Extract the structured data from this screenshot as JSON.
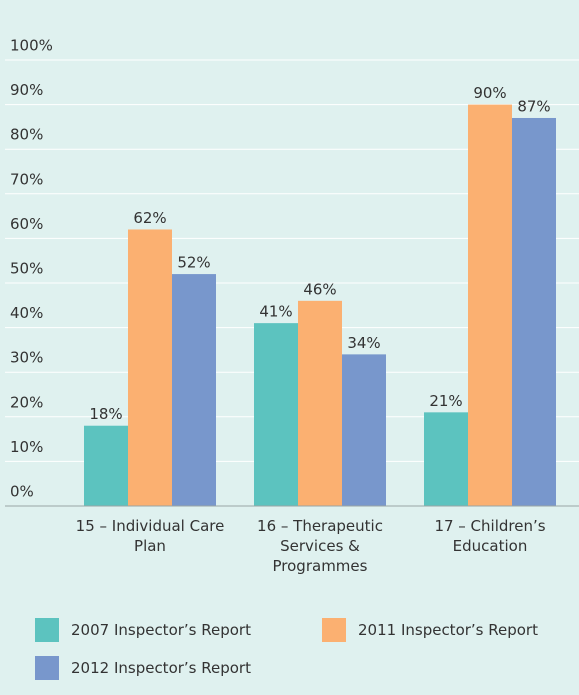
{
  "chart_data": {
    "type": "bar",
    "categories": [
      "15 – Individual Care Plan",
      "16 – Therapeutic Services & Programmes",
      "17 – Children’s Education"
    ],
    "series": [
      {
        "name": "2007 Inspector’s Report",
        "color": "#5cc3bf",
        "values": [
          18,
          41,
          21
        ],
        "value_labels": [
          "18%",
          "41%",
          "21%"
        ]
      },
      {
        "name": "2011 Inspector’s Report",
        "color": "#fbb071",
        "values": [
          62,
          46,
          90
        ],
        "value_labels": [
          "62%",
          "46%",
          "90%"
        ]
      },
      {
        "name": "2012 Inspector’s Report",
        "color": "#7897cc",
        "values": [
          52,
          34,
          87
        ],
        "value_labels": [
          "52%",
          "34%",
          "87%"
        ]
      }
    ],
    "ylim": [
      0,
      100
    ],
    "yticks": [
      {
        "value": 0,
        "label": "0%"
      },
      {
        "value": 10,
        "label": "10%"
      },
      {
        "value": 20,
        "label": "20%"
      },
      {
        "value": 30,
        "label": "30%"
      },
      {
        "value": 40,
        "label": "40%"
      },
      {
        "value": 50,
        "label": "50%"
      },
      {
        "value": 60,
        "label": "60%"
      },
      {
        "value": 70,
        "label": "70%"
      },
      {
        "value": 80,
        "label": "80%"
      },
      {
        "value": 90,
        "label": "90%"
      },
      {
        "value": 100,
        "label": "100%"
      }
    ],
    "grid": true
  }
}
